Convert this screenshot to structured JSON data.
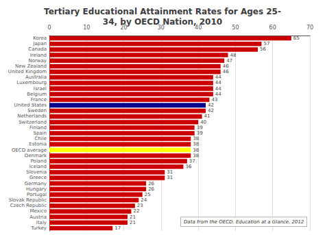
{
  "chart_data": {
    "type": "bar",
    "orientation": "horizontal",
    "title": "Tertiary Educational Attainment Rates for Ages 25-\n34, by OECD Nation, 2010",
    "categories": [
      "Korea",
      "Japan",
      "Canada",
      "Ireland",
      "Norway",
      "New Zealand",
      "United Kingdom",
      "Australia",
      "Luxembourg",
      "Israel",
      "Belgium",
      "France",
      "United States",
      "Sweden",
      "Netherlands",
      "Switzerland",
      "Finland",
      "Spain",
      "Chile",
      "Estonia",
      "OECD average",
      "Denmark",
      "Poland",
      "Iceland",
      "Slovenia",
      "Greece",
      "Germany",
      "Hungary",
      "Portugal",
      "Slovak Republic",
      "Czech Republic",
      "Mexico",
      "Austria",
      "Italy",
      "Turkey"
    ],
    "values": [
      65,
      57,
      56,
      48,
      47,
      46,
      46,
      44,
      44,
      44,
      44,
      43,
      42,
      42,
      41,
      40,
      39,
      39,
      38,
      38,
      38,
      38,
      37,
      36,
      31,
      31,
      26,
      26,
      25,
      24,
      23,
      22,
      21,
      21,
      17
    ],
    "colors": [
      "#cc0000",
      "#cc0000",
      "#cc0000",
      "#cc0000",
      "#cc0000",
      "#cc0000",
      "#cc0000",
      "#cc0000",
      "#cc0000",
      "#cc0000",
      "#cc0000",
      "#cc0000",
      "#00008b",
      "#cc0000",
      "#cc0000",
      "#cc0000",
      "#cc0000",
      "#cc0000",
      "#cc0000",
      "#cc0000",
      "#ffff00",
      "#cc0000",
      "#cc0000",
      "#cc0000",
      "#cc0000",
      "#cc0000",
      "#cc0000",
      "#cc0000",
      "#cc0000",
      "#cc0000",
      "#cc0000",
      "#cc0000",
      "#cc0000",
      "#cc0000",
      "#cc0000"
    ],
    "xlim": [
      0,
      70
    ],
    "xticks": [
      0,
      10,
      20,
      30,
      40,
      50,
      60,
      70
    ],
    "grid": true,
    "data_labels": true,
    "annotation": "Data from the OECD, Education at a Glance, 2012"
  }
}
